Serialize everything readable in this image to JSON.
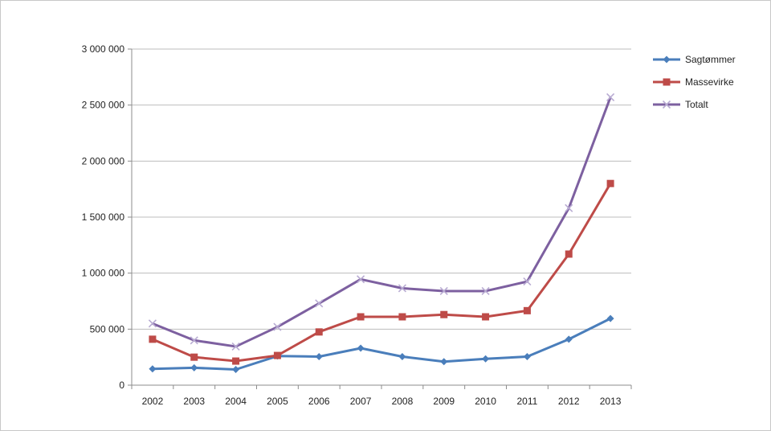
{
  "chart_data": {
    "type": "line",
    "title": "",
    "xlabel": "",
    "ylabel": "",
    "categories": [
      "2002",
      "2003",
      "2004",
      "2005",
      "2006",
      "2007",
      "2008",
      "2009",
      "2010",
      "2011",
      "2012",
      "2013"
    ],
    "ylim": [
      0,
      3000000
    ],
    "yticks": [
      0,
      500000,
      1000000,
      1500000,
      2000000,
      2500000,
      3000000
    ],
    "ytick_labels": [
      "0",
      "500 000",
      "1 000 000",
      "1 500 000",
      "2 000 000",
      "2 500 000",
      "3 000 000"
    ],
    "grid": true,
    "legend_position": "right",
    "series": [
      {
        "name": "Sagtømmer",
        "color": "#4a7ebb",
        "marker": "diamond",
        "values": [
          145000,
          155000,
          140000,
          260000,
          255000,
          330000,
          255000,
          210000,
          235000,
          255000,
          410000,
          595000
        ]
      },
      {
        "name": "Massevirke",
        "color": "#be4b48",
        "marker": "square",
        "values": [
          410000,
          250000,
          215000,
          265000,
          475000,
          610000,
          610000,
          630000,
          610000,
          665000,
          1170000,
          1800000
        ]
      },
      {
        "name": "Totalt",
        "color": "#7d60a0",
        "marker": "x",
        "values": [
          550000,
          400000,
          345000,
          520000,
          730000,
          945000,
          865000,
          840000,
          840000,
          925000,
          1580000,
          2570000
        ]
      }
    ]
  }
}
